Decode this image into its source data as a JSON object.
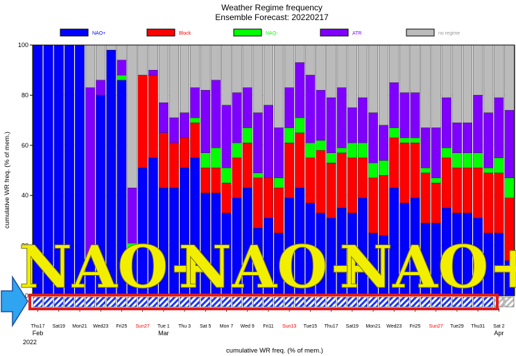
{
  "chart_data": {
    "type": "bar",
    "stacked": true,
    "title": "Weather Regime frequency",
    "subtitle": "Ensemble Forecast: 20220217",
    "ylabel": "cumulative WR freq. (% of mem.)",
    "xlabel": "cumulative WR freq. (% of mem.)",
    "ylim": [
      0,
      100
    ],
    "yticks": [
      0,
      20,
      40,
      60,
      80,
      100
    ],
    "legend_position": "top",
    "series": [
      {
        "name": "NAO+",
        "color": "#0000ff",
        "values": [
          100,
          100,
          100,
          100,
          100,
          15,
          80,
          98,
          86,
          19,
          51,
          55,
          43,
          43,
          51,
          55,
          41,
          41,
          33,
          39,
          43,
          27,
          31,
          25,
          39,
          43,
          37,
          33,
          31,
          35,
          33,
          39,
          25,
          24,
          43,
          37,
          39,
          29,
          29,
          35,
          33,
          33,
          31,
          25,
          25,
          14
        ]
      },
      {
        "name": "Block",
        "color": "#ff0000",
        "values": [
          0,
          0,
          0,
          0,
          0,
          0,
          0,
          0,
          0,
          0,
          37,
          33,
          22,
          18,
          12,
          14,
          10,
          10,
          12,
          16,
          18,
          20,
          16,
          18,
          22,
          22,
          18,
          25,
          22,
          22,
          22,
          16,
          22,
          24,
          20,
          24,
          22,
          20,
          16,
          20,
          18,
          18,
          20,
          24,
          24,
          25
        ]
      },
      {
        "name": "NAO-",
        "color": "#00ff00",
        "values": [
          0,
          0,
          0,
          0,
          0,
          0,
          0,
          0,
          2,
          2,
          0,
          0,
          0,
          0,
          0,
          2,
          6,
          8,
          6,
          6,
          6,
          2,
          0,
          4,
          6,
          6,
          6,
          4,
          4,
          2,
          6,
          6,
          6,
          6,
          4,
          2,
          2,
          2,
          2,
          4,
          6,
          6,
          6,
          2,
          6,
          8
        ]
      },
      {
        "name": "ATR",
        "color": "#7f00ff",
        "values": [
          0,
          0,
          0,
          0,
          0,
          68,
          6,
          0,
          6,
          22,
          0,
          2,
          12,
          10,
          10,
          12,
          25,
          27,
          25,
          20,
          16,
          24,
          29,
          20,
          16,
          22,
          27,
          20,
          22,
          24,
          14,
          18,
          20,
          14,
          18,
          18,
          18,
          16,
          20,
          20,
          12,
          12,
          23,
          22,
          24,
          27
        ]
      },
      {
        "name": "no regime",
        "color": "#bbbbbb",
        "values": [
          0,
          0,
          0,
          0,
          0,
          17,
          14,
          2,
          6,
          57,
          12,
          10,
          23,
          29,
          27,
          17,
          18,
          14,
          24,
          19,
          17,
          27,
          24,
          33,
          17,
          7,
          12,
          18,
          21,
          17,
          25,
          21,
          27,
          32,
          15,
          19,
          19,
          33,
          33,
          21,
          31,
          31,
          20,
          27,
          21,
          26
        ]
      }
    ],
    "x_tick_labels": [
      {
        "index": 0,
        "text": "Thu17",
        "color": "#000000"
      },
      {
        "index": 2,
        "text": "Sat19",
        "color": "#000000"
      },
      {
        "index": 4,
        "text": "Mon21",
        "color": "#000000"
      },
      {
        "index": 6,
        "text": "Wed23",
        "color": "#000000"
      },
      {
        "index": 8,
        "text": "Fri25",
        "color": "#000000"
      },
      {
        "index": 10,
        "text": "Sun27",
        "color": "#ff0000"
      },
      {
        "index": 12,
        "text": "Tue 1",
        "color": "#000000"
      },
      {
        "index": 14,
        "text": "Thu 3",
        "color": "#000000"
      },
      {
        "index": 16,
        "text": "Sat 5",
        "color": "#000000"
      },
      {
        "index": 18,
        "text": "Mon 7",
        "color": "#000000"
      },
      {
        "index": 20,
        "text": "Wed 9",
        "color": "#000000"
      },
      {
        "index": 22,
        "text": "Fri11",
        "color": "#000000"
      },
      {
        "index": 24,
        "text": "Sun13",
        "color": "#ff0000"
      },
      {
        "index": 26,
        "text": "Tue15",
        "color": "#000000"
      },
      {
        "index": 28,
        "text": "Thu17",
        "color": "#000000"
      },
      {
        "index": 30,
        "text": "Sat19",
        "color": "#000000"
      },
      {
        "index": 32,
        "text": "Mon21",
        "color": "#000000"
      },
      {
        "index": 34,
        "text": "Wed23",
        "color": "#000000"
      },
      {
        "index": 36,
        "text": "Fri25",
        "color": "#000000"
      },
      {
        "index": 38,
        "text": "Sun27",
        "color": "#ff0000"
      },
      {
        "index": 40,
        "text": "Tue29",
        "color": "#000000"
      },
      {
        "index": 42,
        "text": "Thu31",
        "color": "#000000"
      },
      {
        "index": 44,
        "text": "Sat 2",
        "color": "#000000"
      }
    ],
    "month_labels": [
      {
        "index": 0,
        "text": "Feb"
      },
      {
        "index": 12,
        "text": "Mar"
      },
      {
        "index": 44,
        "text": "Apr"
      }
    ],
    "year_label": "2022",
    "annotation_text": [
      "NAO+",
      "NAO+",
      "NAO+"
    ]
  }
}
